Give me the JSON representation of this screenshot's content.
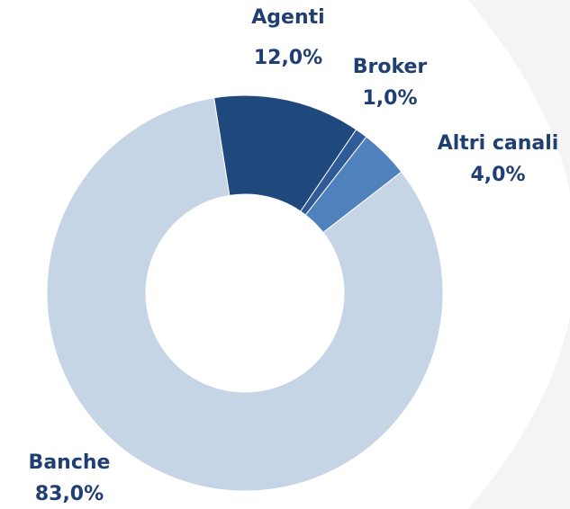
{
  "chart_data": {
    "type": "donut",
    "categories": [
      "Agenti",
      "Broker",
      "Altri canali",
      "Banche"
    ],
    "values": [
      12,
      1,
      4,
      83
    ],
    "value_labels": [
      "12,0%",
      "1,0%",
      "4,0%",
      "83,0%"
    ],
    "colors": [
      "#1f497d",
      "#2f5b98",
      "#4f81bd",
      "#c6d5e6"
    ]
  }
}
